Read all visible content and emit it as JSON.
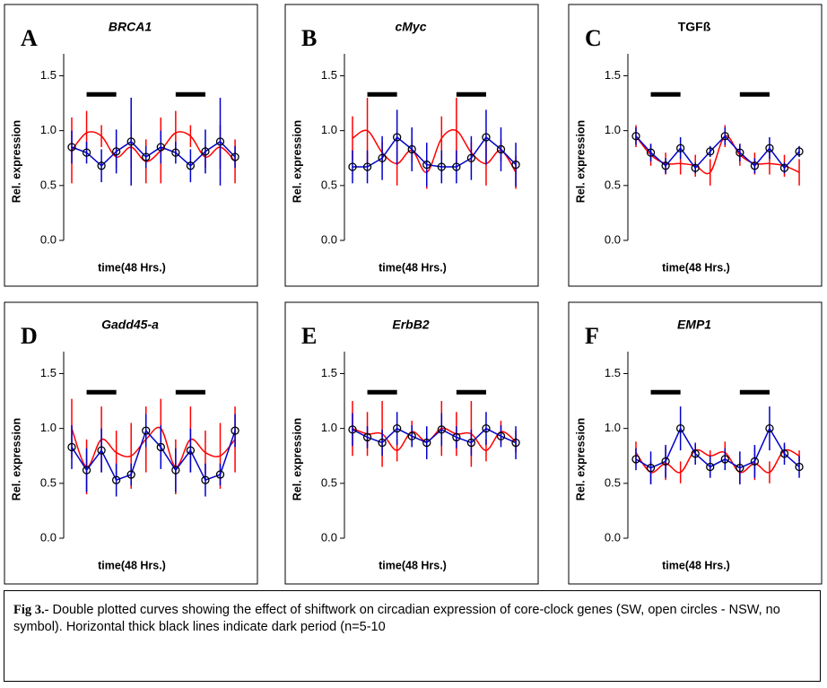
{
  "chart_data": [
    {
      "type": "line",
      "letter": "A",
      "title": "BRCA1",
      "title_italic": true,
      "ylabel": "Rel. expression",
      "xlabel": "time(48 Hrs.)",
      "categories": [
        null,
        null,
        null,
        null,
        null,
        null,
        null,
        null,
        null,
        null,
        null,
        null
      ],
      "ylim": [
        0,
        1.7
      ],
      "yticks": [
        {
          "value": 0,
          "label": "0.0"
        },
        0.5,
        {
          "value": 1,
          "label": "1.0"
        },
        1.5
      ],
      "series": [
        {
          "color": "#ff0000",
          "smooth": true,
          "values": [
            0.82,
            0.98,
            0.95,
            0.76,
            0.85,
            0.72,
            0.82,
            0.98,
            0.95,
            0.76,
            0.85,
            0.72
          ],
          "errors": [
            0.3,
            0.2,
            0.1,
            0.1,
            0.2,
            0.2,
            0.3,
            0.2,
            0.1,
            0.1,
            0.2,
            0.2
          ]
        },
        {
          "color": "#0000cc",
          "marker": "circle",
          "values": [
            0.85,
            0.8,
            0.68,
            0.81,
            0.9,
            0.76,
            0.85,
            0.8,
            0.68,
            0.81,
            0.9,
            0.76
          ],
          "errors": [
            0.15,
            0.1,
            0.15,
            0.2,
            0.4,
            0.1,
            0.15,
            0.1,
            0.15,
            0.2,
            0.4,
            0.1
          ]
        }
      ]
    },
    {
      "type": "line",
      "letter": "B",
      "title": "cMyc",
      "title_italic": true,
      "ylabel": "Rel. expression",
      "xlabel": "time(48 Hrs.)",
      "categories": [
        null,
        null,
        null,
        null,
        null,
        null,
        null,
        null,
        null,
        null,
        null,
        null
      ],
      "ylim": [
        0,
        1.7
      ],
      "yticks": [
        {
          "value": 0,
          "label": "0.0"
        },
        0.5,
        {
          "value": 1,
          "label": "1.0"
        },
        1.5
      ],
      "series": [
        {
          "color": "#ff0000",
          "smooth": true,
          "values": [
            0.93,
            1.0,
            0.8,
            0.7,
            0.82,
            0.62,
            0.93,
            1.0,
            0.8,
            0.7,
            0.82,
            0.62
          ],
          "errors": [
            0.2,
            0.3,
            0.1,
            0.2,
            0.1,
            0.15,
            0.2,
            0.3,
            0.1,
            0.2,
            0.1,
            0.15
          ]
        },
        {
          "color": "#0000cc",
          "marker": "circle",
          "values": [
            0.67,
            0.67,
            0.75,
            0.94,
            0.83,
            0.69,
            0.67,
            0.67,
            0.75,
            0.94,
            0.83,
            0.69
          ],
          "errors": [
            0.15,
            0.15,
            0.2,
            0.25,
            0.2,
            0.2,
            0.15,
            0.15,
            0.2,
            0.25,
            0.2,
            0.2
          ]
        }
      ]
    },
    {
      "type": "line",
      "letter": "C",
      "title": "TGFß",
      "title_italic": false,
      "ylabel": "Rel. expression",
      "xlabel": "time(48 Hrs.)",
      "categories": [
        null,
        null,
        null,
        null,
        null,
        null,
        null,
        null,
        null,
        null,
        null,
        null
      ],
      "ylim": [
        0,
        1.7
      ],
      "yticks": [
        {
          "value": 0,
          "label": "0.0"
        },
        0.5,
        {
          "value": 1,
          "label": "1.0"
        },
        1.5
      ],
      "series": [
        {
          "color": "#ff0000",
          "smooth": true,
          "values": [
            0.95,
            0.78,
            0.7,
            0.7,
            0.68,
            0.62,
            0.95,
            0.78,
            0.7,
            0.7,
            0.68,
            0.62
          ],
          "errors": [
            0.1,
            0.1,
            0.1,
            0.1,
            0.1,
            0.12,
            0.1,
            0.1,
            0.1,
            0.1,
            0.1,
            0.12
          ]
        },
        {
          "color": "#0000cc",
          "marker": "circle",
          "values": [
            0.95,
            0.8,
            0.68,
            0.84,
            0.66,
            0.81,
            0.95,
            0.8,
            0.68,
            0.84,
            0.66,
            0.81
          ],
          "errors": [
            0.08,
            0.08,
            0.07,
            0.1,
            0.05,
            0.05,
            0.08,
            0.08,
            0.07,
            0.1,
            0.05,
            0.05
          ]
        }
      ]
    },
    {
      "type": "line",
      "letter": "D",
      "title": "Gadd45-a",
      "title_italic": true,
      "ylabel": "Rel. expression",
      "xlabel": "time(48 Hrs.)",
      "categories": [
        null,
        null,
        null,
        null,
        null,
        null,
        null,
        null,
        null,
        null,
        null,
        null
      ],
      "ylim": [
        0,
        1.7
      ],
      "yticks": [
        {
          "value": 0,
          "label": "0.0"
        },
        0.5,
        {
          "value": 1,
          "label": "1.0"
        },
        1.5
      ],
      "series": [
        {
          "color": "#ff0000",
          "smooth": true,
          "values": [
            1.0,
            0.65,
            0.9,
            0.78,
            0.75,
            0.9,
            1.0,
            0.65,
            0.9,
            0.78,
            0.75,
            0.9
          ],
          "errors": [
            0.27,
            0.25,
            0.3,
            0.2,
            0.3,
            0.3,
            0.27,
            0.25,
            0.3,
            0.2,
            0.3,
            0.3
          ]
        },
        {
          "color": "#0000cc",
          "marker": "circle",
          "values": [
            0.83,
            0.62,
            0.8,
            0.53,
            0.58,
            0.98,
            0.83,
            0.62,
            0.8,
            0.53,
            0.58,
            0.98
          ],
          "errors": [
            0.2,
            0.2,
            0.2,
            0.15,
            0.1,
            0.15,
            0.2,
            0.2,
            0.2,
            0.15,
            0.1,
            0.15
          ]
        }
      ]
    },
    {
      "type": "line",
      "letter": "E",
      "title": "ErbB2",
      "title_italic": true,
      "ylabel": "Rel. expression",
      "xlabel": "time(48 Hrs.)",
      "categories": [
        null,
        null,
        null,
        null,
        null,
        null,
        null,
        null,
        null,
        null,
        null,
        null
      ],
      "ylim": [
        0,
        1.7
      ],
      "yticks": [
        {
          "value": 0,
          "label": "0.0"
        },
        0.5,
        {
          "value": 1,
          "label": "1.0"
        },
        1.5
      ],
      "series": [
        {
          "color": "#ff0000",
          "smooth": true,
          "values": [
            1.0,
            0.95,
            0.95,
            0.8,
            0.97,
            0.88,
            1.0,
            0.95,
            0.95,
            0.8,
            0.97,
            0.88
          ],
          "errors": [
            0.25,
            0.2,
            0.3,
            0.1,
            0.1,
            0.1,
            0.25,
            0.2,
            0.3,
            0.1,
            0.1,
            0.1
          ]
        },
        {
          "color": "#0000cc",
          "marker": "circle",
          "values": [
            0.99,
            0.92,
            0.87,
            1.0,
            0.93,
            0.87,
            0.99,
            0.92,
            0.87,
            1.0,
            0.93,
            0.87
          ],
          "errors": [
            0.15,
            0.1,
            0.12,
            0.15,
            0.1,
            0.15,
            0.15,
            0.1,
            0.12,
            0.15,
            0.1,
            0.15
          ]
        }
      ]
    },
    {
      "type": "line",
      "letter": "F",
      "title": "EMP1",
      "title_italic": true,
      "ylabel": "Rel. expression",
      "xlabel": "time(48 Hrs.)",
      "categories": [
        null,
        null,
        null,
        null,
        null,
        null,
        null,
        null,
        null,
        null,
        null,
        null
      ],
      "ylim": [
        0,
        1.7
      ],
      "yticks": [
        {
          "value": 0,
          "label": "0.0"
        },
        0.5,
        {
          "value": 1,
          "label": "1.0"
        },
        1.5
      ],
      "series": [
        {
          "color": "#ff0000",
          "smooth": true,
          "values": [
            0.78,
            0.6,
            0.68,
            0.6,
            0.8,
            0.75,
            0.78,
            0.6,
            0.68,
            0.6,
            0.8,
            0.75
          ],
          "errors": [
            0.1,
            0.1,
            0.15,
            0.1,
            0.05,
            0.05,
            0.1,
            0.1,
            0.15,
            0.1,
            0.05,
            0.05
          ]
        },
        {
          "color": "#0000cc",
          "marker": "circle",
          "values": [
            0.72,
            0.64,
            0.7,
            1.0,
            0.77,
            0.65,
            0.72,
            0.64,
            0.7,
            1.0,
            0.77,
            0.65
          ],
          "errors": [
            0.1,
            0.15,
            0.15,
            0.2,
            0.1,
            0.1,
            0.1,
            0.15,
            0.15,
            0.2,
            0.1,
            0.1
          ]
        }
      ]
    }
  ],
  "caption": {
    "lead": "Fig 3.-",
    "text": "Double plotted curves showing the effect of shiftwork on circadian expression of core-clock genes (SW, open circles - NSW, no symbol). Horizontal thick black lines indicate dark period (n=5-10"
  }
}
